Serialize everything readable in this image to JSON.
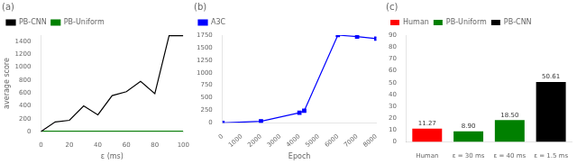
{
  "chart_data": [
    {
      "type": "line",
      "title": "(a)",
      "xlabel": "ε (ms)",
      "ylabel": "average score",
      "x": [
        0,
        10,
        20,
        30,
        40,
        50,
        60,
        70,
        80,
        90,
        100
      ],
      "series": [
        {
          "name": "PB-CNN",
          "color": "black",
          "values": [
            0,
            150,
            175,
            400,
            260,
            560,
            620,
            780,
            590,
            1490,
            1490
          ]
        },
        {
          "name": "PB-Uniform",
          "color": "green",
          "values": [
            5,
            5,
            5,
            5,
            5,
            5,
            5,
            5,
            5,
            5,
            5
          ]
        }
      ],
      "xlim": [
        0,
        100
      ],
      "ylim": [
        0,
        1500
      ],
      "xticks": [
        0,
        20,
        40,
        60,
        80,
        100
      ],
      "yticks": [
        0,
        200,
        400,
        600,
        800,
        1000,
        1200,
        1400
      ],
      "grid": false,
      "legend": "upper left"
    },
    {
      "type": "line",
      "title": "(b)",
      "xlabel": "Epoch",
      "x": [
        0,
        2000,
        4000,
        4250,
        6000,
        7000,
        8000
      ],
      "series": [
        {
          "name": "A3C",
          "color": "blue",
          "marker": "square",
          "values": [
            0,
            30,
            200,
            240,
            1750,
            1720,
            1680
          ]
        }
      ],
      "xlim": [
        0,
        8000
      ],
      "ylim": [
        0,
        1750
      ],
      "xticks": [
        0,
        1000,
        2000,
        3000,
        4000,
        5000,
        6000,
        7000,
        8000
      ],
      "yticks": [
        0,
        250,
        500,
        750,
        1000,
        1250,
        1500,
        1750
      ],
      "grid": false,
      "legend": "upper left"
    },
    {
      "type": "bar",
      "title": "(c)",
      "categories": [
        "Human",
        "ε = 30 ms",
        "ε = 40 ms",
        "ε = 1.5 ms"
      ],
      "series": [
        {
          "name": "Human",
          "color": "red",
          "values": [
            11.27,
            null,
            null,
            null
          ],
          "value_labels": [
            "11.27",
            null,
            null,
            null
          ]
        },
        {
          "name": "PB-Uniform",
          "color": "green",
          "values": [
            null,
            8.9,
            18.5,
            null
          ],
          "value_labels": [
            null,
            "8.90",
            "18.50",
            null
          ]
        },
        {
          "name": "PB-CNN",
          "color": "black",
          "values": [
            null,
            null,
            null,
            50.61
          ],
          "value_labels": [
            null,
            null,
            null,
            "50.61"
          ]
        }
      ],
      "ylim": [
        0,
        90
      ],
      "yticks": [
        0,
        10,
        20,
        30,
        40,
        50,
        60,
        70,
        80,
        90
      ],
      "data_labels": true,
      "grid": false,
      "legend": "upper left"
    }
  ]
}
